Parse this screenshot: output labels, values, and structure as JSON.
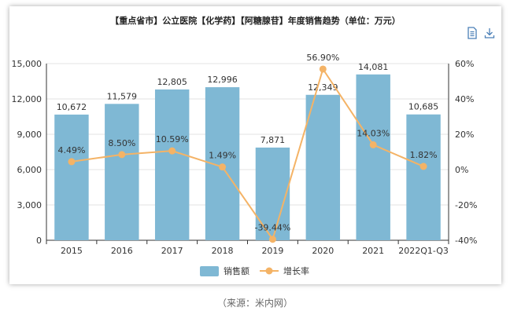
{
  "chart_data": {
    "type": "bar",
    "title": "【重点省市】公立医院【化学药】【阿糖腺苷】年度销售趋势（单位：万元）",
    "categories": [
      "2015",
      "2016",
      "2017",
      "2018",
      "2019",
      "2020",
      "2021",
      "2022Q1-Q3"
    ],
    "series": [
      {
        "name": "销售额",
        "type": "bar",
        "axis": "left",
        "color": "#7fb8d4",
        "values": [
          10672,
          11579,
          12805,
          12996,
          7871,
          12349,
          14081,
          10685
        ],
        "labels": [
          "10,672",
          "11,579",
          "12,805",
          "12,996",
          "7,871",
          "12,349",
          "14,081",
          "10,685"
        ]
      },
      {
        "name": "增长率",
        "type": "line",
        "axis": "right",
        "color": "#f4b366",
        "values": [
          4.49,
          8.5,
          10.59,
          1.49,
          -39.44,
          56.9,
          14.03,
          1.82
        ],
        "labels": [
          "4.49%",
          "8.50%",
          "10.59%",
          "1.49%",
          "-39.44%",
          "56.90%",
          "14.03%",
          "1.82%"
        ]
      }
    ],
    "y_left": {
      "min": 0,
      "max": 15000,
      "ticks": [
        0,
        3000,
        6000,
        9000,
        12000,
        15000
      ],
      "tick_labels": [
        "0",
        "3,000",
        "6,000",
        "9,000",
        "12,000",
        "15,000"
      ]
    },
    "y_right": {
      "min": -40,
      "max": 60,
      "ticks": [
        -40,
        -20,
        0,
        20,
        40,
        60
      ],
      "tick_labels": [
        "-40%",
        "-20%",
        "0%",
        "20%",
        "40%",
        "60%"
      ]
    },
    "grid": true,
    "legend_position": "bottom-center"
  },
  "toolbar": {
    "icons": [
      "data-view-icon",
      "download-icon"
    ]
  },
  "source": "（来源：米内网）"
}
